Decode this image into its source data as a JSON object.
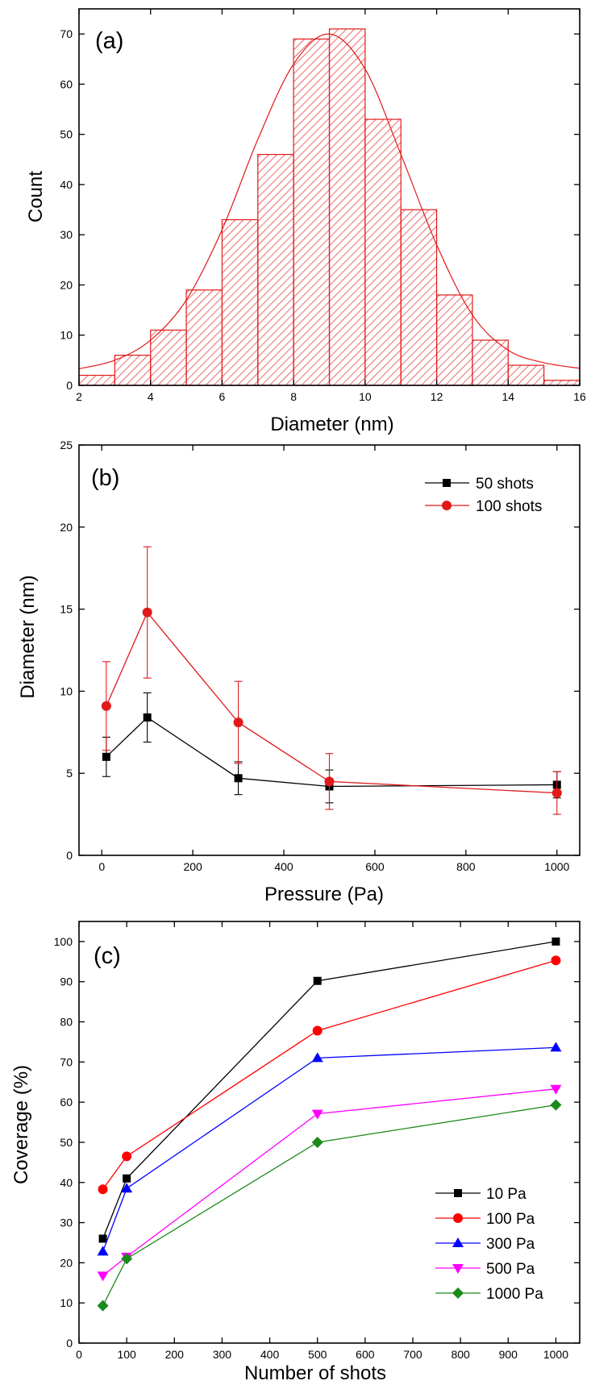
{
  "chart_data": [
    {
      "type": "bar",
      "panel_label": "(a)",
      "xlabel": "Diameter (nm)",
      "ylabel": "Count",
      "xlim": [
        2,
        16
      ],
      "ylim": [
        0,
        75
      ],
      "xticks": [
        2,
        4,
        6,
        8,
        10,
        12,
        14,
        16
      ],
      "yticks": [
        0,
        10,
        20,
        30,
        40,
        50,
        60,
        70
      ],
      "bins": [
        [
          2,
          3
        ],
        [
          3,
          4
        ],
        [
          4,
          5
        ],
        [
          5,
          6
        ],
        [
          6,
          7
        ],
        [
          7,
          8
        ],
        [
          8,
          9
        ],
        [
          9,
          10
        ],
        [
          10,
          11
        ],
        [
          11,
          12
        ],
        [
          12,
          13
        ],
        [
          13,
          14
        ],
        [
          14,
          15
        ],
        [
          15,
          16
        ]
      ],
      "values": [
        2,
        6,
        11,
        19,
        33,
        46,
        69,
        71,
        53,
        35,
        18,
        9,
        4,
        1
      ],
      "fit": {
        "type": "gaussian",
        "x": [
          2,
          3,
          4,
          5,
          6,
          7,
          8,
          9,
          10,
          11,
          12,
          13,
          14,
          15,
          16
        ],
        "y": [
          3.3,
          5,
          9,
          17,
          31,
          49,
          64,
          70,
          63,
          46,
          28,
          14,
          7,
          4.5,
          3.4
        ]
      },
      "color": "#e01a1a",
      "hatch": "diagonal",
      "grid": false
    },
    {
      "type": "line",
      "panel_label": "(b)",
      "xlabel": "Pressure (Pa)",
      "ylabel": "Diameter (nm)",
      "xlim": [
        -50,
        1050
      ],
      "ylim": [
        0,
        25
      ],
      "xticks": [
        0,
        200,
        400,
        600,
        800,
        1000
      ],
      "yticks": [
        0,
        5,
        10,
        15,
        20,
        25
      ],
      "x": [
        10,
        100,
        300,
        500,
        1000
      ],
      "series": [
        {
          "name": "50 shots",
          "values": [
            6.0,
            8.4,
            4.7,
            4.2,
            4.3
          ],
          "errors": [
            1.2,
            1.5,
            1.0,
            1.0,
            0.8
          ],
          "color": "#000000",
          "marker": "square"
        },
        {
          "name": "100 shots",
          "values": [
            9.1,
            14.8,
            8.1,
            4.5,
            3.8
          ],
          "errors": [
            2.7,
            4.0,
            2.5,
            1.7,
            1.3
          ],
          "color": "#e01a1a",
          "marker": "circle"
        }
      ],
      "legend_position": "top-right",
      "grid": false
    },
    {
      "type": "line",
      "panel_label": "(c)",
      "xlabel": "Number of shots",
      "ylabel": "Coverage (%)",
      "xlim": [
        0,
        1050
      ],
      "ylim": [
        0,
        105
      ],
      "xticks": [
        0,
        100,
        200,
        300,
        400,
        500,
        600,
        700,
        800,
        900,
        1000
      ],
      "yticks": [
        0,
        10,
        20,
        30,
        40,
        50,
        60,
        70,
        80,
        90,
        100
      ],
      "x": [
        50,
        100,
        500,
        1000
      ],
      "series": [
        {
          "name": "10 Pa",
          "values": [
            26,
            41,
            90.2,
            100
          ],
          "color": "#000000",
          "marker": "square"
        },
        {
          "name": "100 Pa",
          "values": [
            38.3,
            46.5,
            77.8,
            95.3
          ],
          "color": "#ff0000",
          "marker": "circle"
        },
        {
          "name": "300 Pa",
          "values": [
            22.8,
            38.5,
            71,
            73.6
          ],
          "color": "#0000ff",
          "marker": "triangle-up"
        },
        {
          "name": "500 Pa",
          "values": [
            16.8,
            21.5,
            57.1,
            63.3
          ],
          "color": "#ff00ff",
          "marker": "triangle-down"
        },
        {
          "name": "1000 Pa",
          "values": [
            9.3,
            21,
            50,
            59.3
          ],
          "color": "#1a8a1a",
          "marker": "diamond"
        }
      ],
      "legend_position": "bottom-right",
      "grid": false
    }
  ]
}
